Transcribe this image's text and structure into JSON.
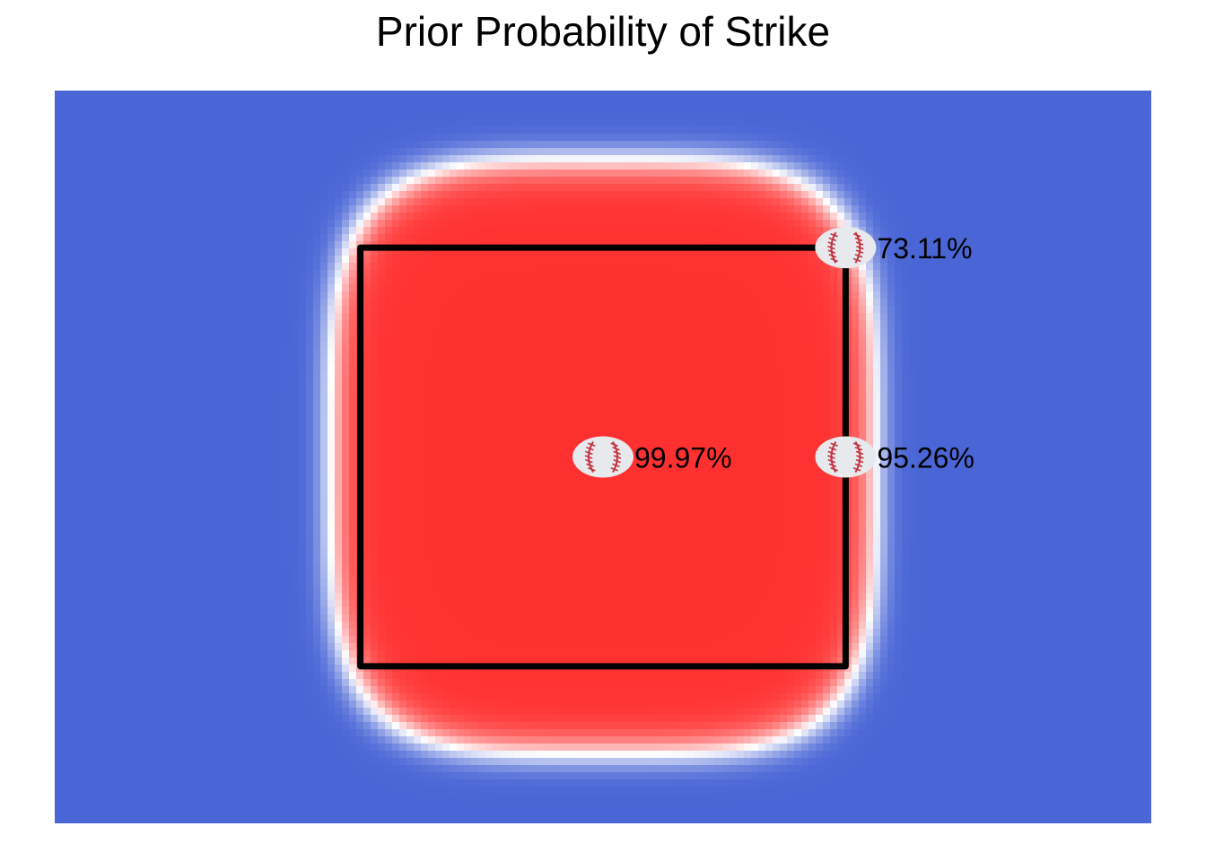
{
  "chart_data": {
    "type": "heatmap",
    "title": "Prior Probability of Strike",
    "xlabel": "",
    "ylabel": "",
    "xlim": [
      -2.35,
      2.35
    ],
    "ylim": [
      0,
      3.5
    ],
    "grid": false,
    "legend": "none",
    "color_scale": {
      "low": "#4a66d6",
      "mid": "#ffffff",
      "high": "#ff3030",
      "midpoint": 0.5
    },
    "strike_zone": {
      "x": [
        -1.04,
        1.04
      ],
      "y": [
        0.75,
        2.75
      ]
    },
    "points": [
      {
        "x": 0.0,
        "y": 1.75,
        "value": 0.9997,
        "label": "99.97%"
      },
      {
        "x": 1.04,
        "y": 1.75,
        "value": 0.9526,
        "label": "95.26%"
      },
      {
        "x": 1.04,
        "y": 2.75,
        "value": 0.7311,
        "label": "73.11%"
      }
    ]
  },
  "colors": {
    "zone_line": "#000000",
    "ball_fill": "#e7e9ec",
    "ball_stitch": "#c4323f"
  }
}
